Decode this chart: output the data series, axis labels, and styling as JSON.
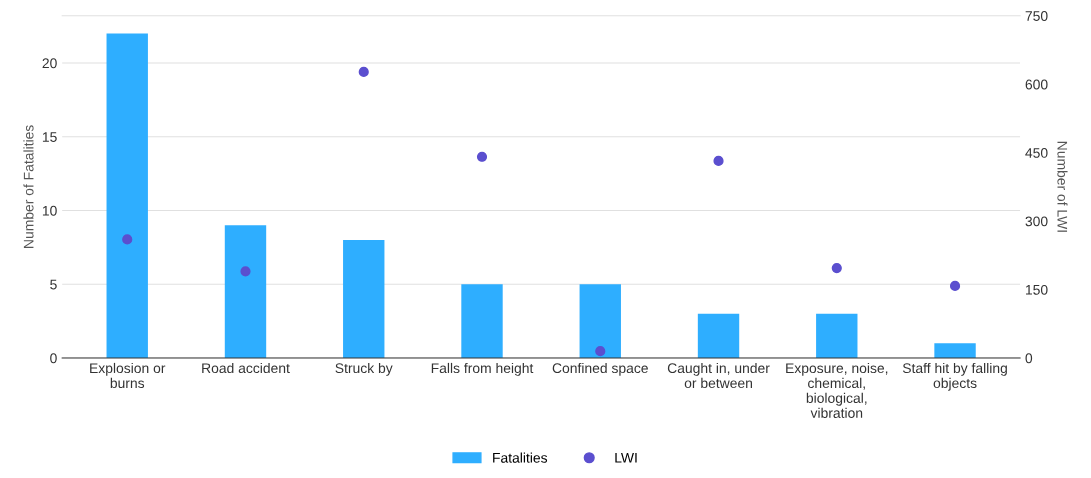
{
  "chart_data": {
    "type": "bar",
    "categories": [
      "Explosion or\nburns",
      "Road accident",
      "Struck by",
      "Falls from height",
      "Confined space",
      "Caught in, under\nor between",
      "Exposure, noise,\nchemical,\nbiological,\nvibration",
      "Staff hit by falling\nobjects"
    ],
    "series": [
      {
        "name": "Fatalities",
        "color": "#2eaeff",
        "values": [
          22,
          9,
          8,
          5,
          5,
          3,
          3,
          1
        ]
      },
      {
        "name": "LWI",
        "type": "scatter",
        "axis": "y2",
        "color": "#5b4fcf",
        "values": [
          260,
          190,
          627,
          441,
          15,
          432,
          197,
          158
        ]
      }
    ],
    "ylabel": "Number of Fatalities",
    "y2label": "Number of LWI",
    "ylim": [
      0,
      23.2
    ],
    "yticks": [
      0,
      5,
      10,
      15,
      20
    ],
    "y2lim": [
      0,
      750
    ],
    "y2ticks": [
      0,
      150,
      300,
      450,
      600,
      750
    ],
    "grid": "y",
    "legend": "bottom",
    "marker": "circle"
  }
}
